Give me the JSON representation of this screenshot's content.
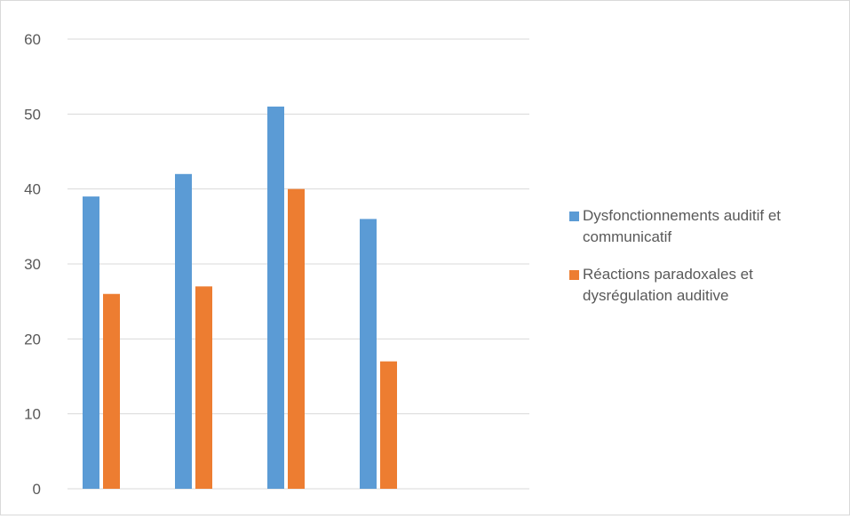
{
  "chart_data": {
    "type": "bar",
    "title": "",
    "xlabel": "",
    "ylabel": "",
    "categories": [
      "",
      "",
      "",
      ""
    ],
    "series": [
      {
        "name": "Dysfonctionnements auditif et communicatif",
        "color": "#5b9bd5",
        "values": [
          39,
          42,
          51,
          36
        ]
      },
      {
        "name": "Réactions paradoxales et dysrégulation auditive",
        "color": "#ed7d31",
        "values": [
          26,
          27,
          40,
          17
        ]
      }
    ],
    "ylim": [
      0,
      60
    ],
    "yticks": [
      0,
      10,
      20,
      30,
      40,
      50,
      60
    ],
    "grid": true,
    "legend_position": "right"
  }
}
